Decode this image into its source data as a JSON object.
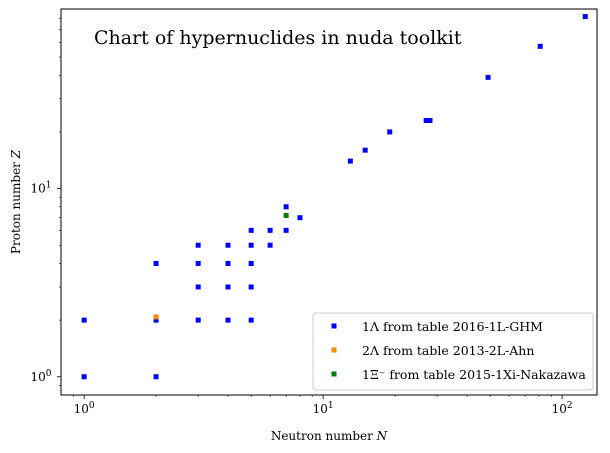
{
  "chart_data": {
    "type": "scatter",
    "title": "Chart of hypernuclides in nuda toolkit",
    "xlabel": "Neutron number",
    "xlabel_var": "N",
    "ylabel": "Proton number",
    "ylabel_var": "Z",
    "xscale": "log",
    "yscale": "log",
    "xlim": [
      0.8,
      140
    ],
    "ylim": [
      0.8,
      90
    ],
    "x_ticks": [
      {
        "value": 1,
        "base": "10",
        "exp": "0"
      },
      {
        "value": 10,
        "base": "10",
        "exp": "1"
      },
      {
        "value": 100,
        "base": "10",
        "exp": "2"
      }
    ],
    "y_ticks": [
      {
        "value": 1,
        "base": "10",
        "exp": "0"
      },
      {
        "value": 10,
        "base": "10",
        "exp": "1"
      }
    ],
    "grid": false,
    "legend_position": "bottom-right",
    "series": [
      {
        "name": "1Λ from table 2016-1L-GHM",
        "color": "#0000ff",
        "points": [
          [
            1,
            1
          ],
          [
            1,
            2
          ],
          [
            2,
            1
          ],
          [
            2,
            2
          ],
          [
            2,
            4
          ],
          [
            3,
            2
          ],
          [
            3,
            3
          ],
          [
            3,
            4
          ],
          [
            3,
            5
          ],
          [
            4,
            2
          ],
          [
            4,
            3
          ],
          [
            4,
            4
          ],
          [
            4,
            5
          ],
          [
            5,
            2
          ],
          [
            5,
            3
          ],
          [
            5,
            4
          ],
          [
            5,
            5
          ],
          [
            5,
            6
          ],
          [
            6,
            5
          ],
          [
            6,
            6
          ],
          [
            7,
            6
          ],
          [
            7,
            8
          ],
          [
            8,
            7
          ],
          [
            13,
            14
          ],
          [
            15,
            16
          ],
          [
            19,
            20
          ],
          [
            27,
            23
          ],
          [
            28,
            23
          ],
          [
            49,
            39
          ],
          [
            81,
            57
          ],
          [
            125,
            82
          ]
        ]
      },
      {
        "name": "2Λ from table 2013-2L-Ahn",
        "color": "#ff8c00",
        "points": [
          [
            2,
            2.08
          ]
        ]
      },
      {
        "name": "1Ξ⁻ from table 2015-1Xi-Nakazawa",
        "color": "#008000",
        "points": [
          [
            7,
            7.2
          ]
        ]
      }
    ]
  }
}
